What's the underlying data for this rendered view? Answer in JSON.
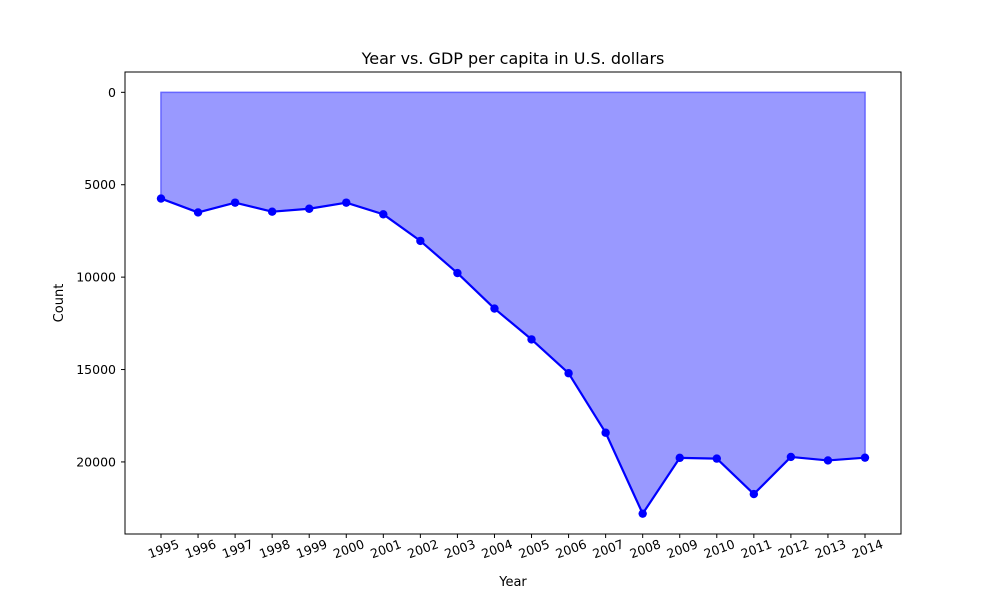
{
  "chart_data": {
    "type": "area",
    "title": "Year vs. GDP per capita in U.S. dollars",
    "xlabel": "Year",
    "ylabel": "Count",
    "categories": [
      "1995",
      "1996",
      "1997",
      "1998",
      "1999",
      "2000",
      "2001",
      "2002",
      "2003",
      "2004",
      "2005",
      "2006",
      "2007",
      "2008",
      "2009",
      "2010",
      "2011",
      "2012",
      "2013",
      "2014"
    ],
    "series": [
      {
        "name": "GDP per capita",
        "values": [
          5750,
          6500,
          5970,
          6460,
          6300,
          5970,
          6600,
          8040,
          9780,
          11700,
          13370,
          15200,
          18420,
          22800,
          19780,
          19820,
          21740,
          19730,
          19920,
          19770
        ]
      }
    ],
    "ylim": [
      23900,
      -1100
    ],
    "y_inverted": true,
    "yticks": [
      0,
      5000,
      10000,
      15000,
      20000
    ],
    "fill_baseline": 0,
    "grid": false,
    "colors": {
      "line": "#0000ff",
      "fill": "#9999ff",
      "fill_edge": "#6666ff",
      "marker": "#0000ff"
    }
  }
}
